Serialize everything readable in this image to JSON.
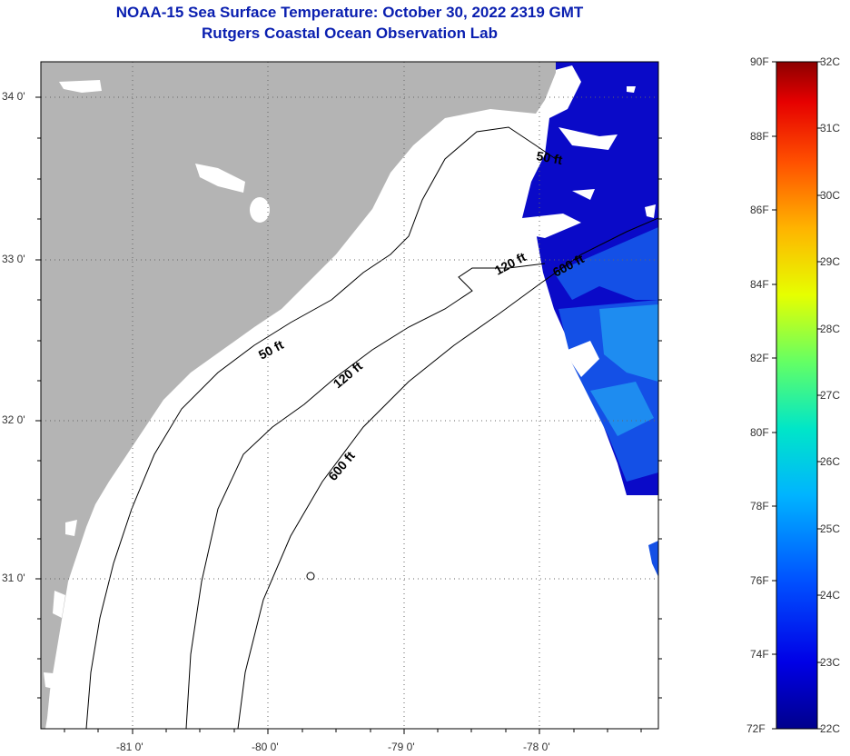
{
  "header": {
    "title": "NOAA-15 Sea Surface Temperature:  October 30, 2022 2319 GMT",
    "subtitle": "Rutgers Coastal Ocean Observation Lab"
  },
  "map": {
    "lat_labels": [
      "34 0'",
      "33 0'",
      "32 0'",
      "31 0'"
    ],
    "lon_labels": [
      "-81 0'",
      "-80 0'",
      "-79 0'",
      "-78 0'"
    ],
    "contour_labels": [
      "50 ft",
      "120 ft",
      "600 ft",
      "50 ft",
      "120 ft",
      "600 ft"
    ],
    "land_color": "#b4b4b4",
    "ocean_colors": [
      "#0a0ac8",
      "#1450e6",
      "#1e8cf0"
    ]
  },
  "colorbar": {
    "f_labels": [
      "90F",
      "88F",
      "86F",
      "84F",
      "82F",
      "80F",
      "78F",
      "76F",
      "74F",
      "72F"
    ],
    "c_labels": [
      "32C",
      "31C",
      "30C",
      "29C",
      "28C",
      "27C",
      "26C",
      "25C",
      "24C",
      "23C",
      "22C"
    ]
  }
}
